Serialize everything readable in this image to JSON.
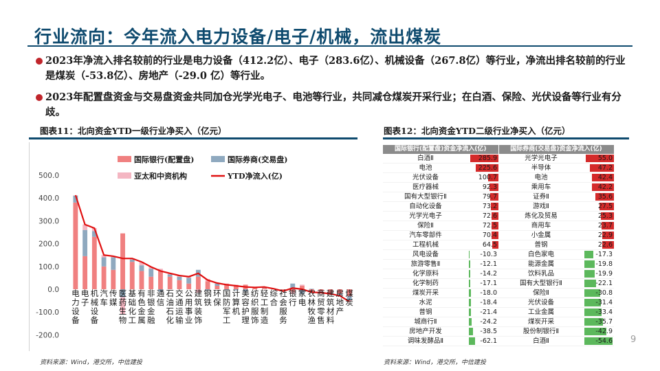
{
  "title": "行业流向：今年流入电力设备/电子/机械，流出煤炭",
  "bullets": [
    "2023年净流入排名较前的行业是电力设备（412.2亿）、电子（283.6亿）、机械设备（267.8亿）等行业，净流出排名较前的行业是煤炭（-53.8亿）、房地产（-29.0 亿）等行业。",
    "2023年配置盘资金与交易盘资金共同加仓光学光电子、电池等行业，共同减仓煤炭开采行业；在白酒、保险、光伏设备等行业有分歧。"
  ],
  "figure11_label": "图表11：北向资金YTD一级行业净买入（亿元）",
  "figure12_label": "图表12：北向资金YTD二级行业净买入（亿元）",
  "source_left": "资料来源：Wind，港交所，中信建投",
  "source_right": "资料来源：Wind，港交所，中信建投",
  "page_number": "9",
  "colors": {
    "title": "#0e4a6e",
    "bullet_dot": "#c0252b",
    "series_a": "#f08080",
    "series_b": "#8fa9bf",
    "series_c": "#f4b6c2",
    "series_line": "#e01010",
    "table_pos_bar": "#d42a2a",
    "table_neg_bar": "#5cb85c"
  },
  "chart_data": [
    {
      "type": "bar",
      "stacked": true,
      "categories": [
        "电力设备",
        "电子",
        "机械设备",
        "汽车",
        "传媒",
        "医药生物",
        "基础化工",
        "有色金属",
        "非银金融",
        "通信",
        "石油石化",
        "交通运输",
        "公用事业",
        "建筑装饰",
        "钢铁",
        "环保",
        "国防军工",
        "计算机",
        "美容护理",
        "纺织服饰",
        "轻工制造",
        "综合",
        "社会服务",
        "银行",
        "家电",
        "农林牧渔",
        "商贸零售",
        "建筑材料",
        "房地产",
        "煤炭"
      ],
      "category_labels": [
        "电力设备",
        "电子",
        "机械设备",
        "汽车",
        "传媒",
        "医药生物",
        "基础化工",
        "有色金属",
        "非银金融",
        "通信",
        "石油石化",
        "交通运输",
        "公用事业",
        "建筑装饰",
        "钢铁",
        "环保",
        "国防军工",
        "计算机",
        "美容护理",
        "纺织服饰",
        "轻工制造",
        "综合",
        "社会服务",
        "银行",
        "家电",
        "农林牧渔",
        "商贸零售",
        "建筑材料",
        "房地产",
        "煤炭"
      ],
      "series": [
        {
          "name": "国际银行(配置盘)",
          "kind": "bar",
          "values": [
            380,
            145,
            230,
            100,
            85,
            245,
            120,
            80,
            55,
            80,
            55,
            40,
            25,
            55,
            35,
            15,
            20,
            15,
            20,
            8,
            5,
            0,
            -5,
            -10,
            15,
            -15,
            -10,
            -15,
            -20,
            -30
          ]
        },
        {
          "name": "国际券商(交易盘)",
          "kind": "bar",
          "values": [
            30,
            115,
            25,
            40,
            55,
            -35,
            10,
            25,
            35,
            -10,
            10,
            15,
            25,
            30,
            -5,
            10,
            -5,
            -5,
            -10,
            0,
            5,
            2,
            -3,
            25,
            -20,
            2,
            -5,
            -3,
            -6,
            -18
          ]
        },
        {
          "name": "亚太和中资机构",
          "kind": "bar",
          "values": [
            2,
            24,
            13,
            10,
            5,
            -75,
            5,
            15,
            8,
            10,
            5,
            5,
            5,
            -15,
            10,
            2,
            5,
            5,
            0,
            0,
            0,
            0,
            0,
            -10,
            5,
            0,
            0,
            -2,
            -3,
            -6
          ]
        },
        {
          "name": "YTD净流入(亿)",
          "kind": "line",
          "values": [
            412.2,
            283.6,
            267.8,
            150,
            145,
            135,
            135,
            120,
            98,
            80,
            70,
            60,
            55,
            70,
            40,
            27,
            20,
            15,
            10,
            8,
            10,
            2,
            -8,
            5,
            0,
            -13,
            -15,
            -20,
            -29,
            -53.8
          ]
        }
      ],
      "ylim": [
        -200,
        500
      ],
      "yticks": [
        "500.0",
        "400.0",
        "300.0",
        "200.0",
        "100.0",
        "0.0",
        "-100.0",
        "-200.0"
      ],
      "grid": false,
      "legend": "top"
    },
    {
      "type": "table",
      "headers": [
        "国际银行(配置盘)资金净流入(亿)",
        "国际券商(交易盘)资金净流入(亿)"
      ],
      "rows": [
        {
          "a_name": "白酒Ⅱ",
          "a_val": "285.9",
          "b_name": "光学光电子",
          "b_val": "55.0"
        },
        {
          "a_name": "电池",
          "a_val": "225.6",
          "b_name": "半导体",
          "b_val": "47.2"
        },
        {
          "a_name": "光伏设备",
          "a_val": "100.7",
          "b_name": "电池",
          "b_val": "42.4"
        },
        {
          "a_name": "医疗器械",
          "a_val": "92.3",
          "b_name": "乘用车",
          "b_val": "42.2"
        },
        {
          "a_name": "国有大型银行Ⅱ",
          "a_val": "79.7",
          "b_name": "证券Ⅱ",
          "b_val": "35.6"
        },
        {
          "a_name": "自动化设备",
          "a_val": "73.2",
          "b_name": "游戏Ⅱ",
          "b_val": "27.5"
        },
        {
          "a_name": "光学光电子",
          "a_val": "72.6",
          "b_name": "炼化及贸易",
          "b_val": "25.3"
        },
        {
          "a_name": "保险Ⅱ",
          "a_val": "72.5",
          "b_name": "商用车",
          "b_val": "23.7"
        },
        {
          "a_name": "汽车零部件",
          "a_val": "70.4",
          "b_name": "小金属",
          "b_val": "22.9"
        },
        {
          "a_name": "工程机械",
          "a_val": "64.5",
          "b_name": "普钢",
          "b_val": "22.6"
        },
        {
          "a_name": "风电设备",
          "a_val": "-10.3",
          "b_name": "白色家电",
          "b_val": "-17.3"
        },
        {
          "a_name": "旅游零售Ⅱ",
          "a_val": "-12.1",
          "b_name": "能源金属",
          "b_val": "-19.8"
        },
        {
          "a_name": "化学原料",
          "a_val": "-14.2",
          "b_name": "饮料乳品",
          "b_val": "-19.9"
        },
        {
          "a_name": "化学制药",
          "a_val": "-17.1",
          "b_name": "国有大型银行Ⅱ",
          "b_val": "-22.1"
        },
        {
          "a_name": "煤炭开采",
          "a_val": "-18.0",
          "b_name": "保险Ⅱ",
          "b_val": "-30.8"
        },
        {
          "a_name": "水泥",
          "a_val": "-18.4",
          "b_name": "光伏设备",
          "b_val": "-31.4"
        },
        {
          "a_name": "普钢",
          "a_val": "-21.4",
          "b_name": "工业金属",
          "b_val": "-33.4"
        },
        {
          "a_name": "城商行Ⅱ",
          "a_val": "-24.2",
          "b_name": "煤炭开采",
          "b_val": "-35.7"
        },
        {
          "a_name": "房地产开发",
          "a_val": "-38.5",
          "b_name": "股份制银行Ⅱ",
          "b_val": "-42.9"
        },
        {
          "a_name": "调味发酵品Ⅱ",
          "a_val": "-62.1",
          "b_name": "白酒Ⅱ",
          "b_val": "-54.6"
        }
      ]
    }
  ]
}
